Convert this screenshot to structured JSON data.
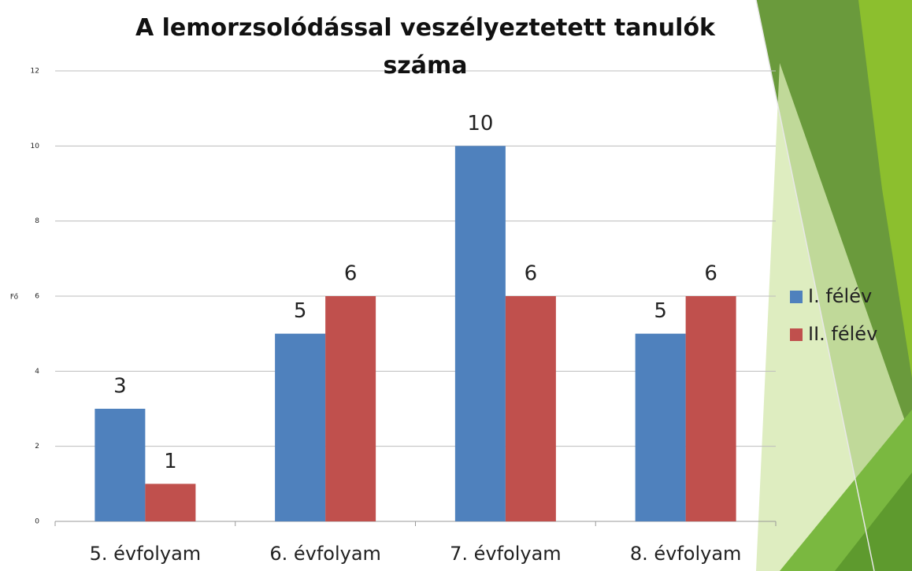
{
  "chart_data": {
    "type": "bar",
    "title": "A lemorzsolódással veszélyeztetett tanulók száma",
    "y_label": "Fő",
    "categories": [
      "5. évfolyam",
      "6. évfolyam",
      "7. évfolyam",
      "8. évfolyam"
    ],
    "series": [
      {
        "name": "I. félév",
        "color": "#4f81bd",
        "values": [
          3,
          5,
          10,
          5
        ]
      },
      {
        "name": "II. félév",
        "color": "#c0504d",
        "values": [
          1,
          6,
          6,
          6
        ]
      }
    ],
    "ylim": [
      0,
      12
    ],
    "yticks": [
      0,
      2,
      4,
      6,
      8,
      10,
      12
    ],
    "grid": true,
    "legend": "right"
  }
}
